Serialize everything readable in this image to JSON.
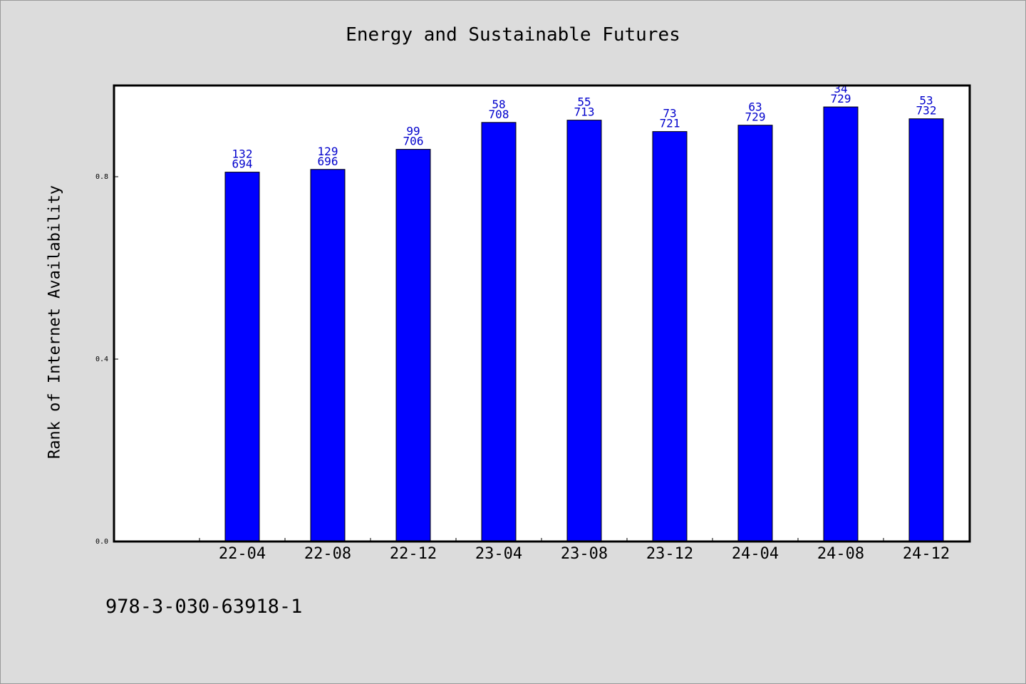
{
  "chart_data": {
    "type": "bar",
    "title": "Energy and Sustainable Futures",
    "xlabel": "",
    "ylabel": "Rank of Internet Availability",
    "categories": [
      "22-04",
      "22-08",
      "22-12",
      "23-04",
      "23-08",
      "23-12",
      "24-04",
      "24-08",
      "24-12"
    ],
    "values": [
      0.81,
      0.816,
      0.86,
      0.919,
      0.924,
      0.899,
      0.913,
      0.953,
      0.927
    ],
    "labels_top": [
      "132",
      "129",
      "99",
      "58",
      "55",
      "73",
      "63",
      "34",
      "53"
    ],
    "labels_bottom": [
      "694",
      "696",
      "706",
      "708",
      "713",
      "721",
      "729",
      "729",
      "732"
    ],
    "yticks": [
      "0.0",
      "0.4",
      "0.8"
    ],
    "ylim": [
      0,
      1.0
    ],
    "grid": false,
    "bar_color": "#0000ff",
    "label_color": "#0000cc"
  },
  "footer": {
    "isbn": "978-3-030-63918-1"
  }
}
